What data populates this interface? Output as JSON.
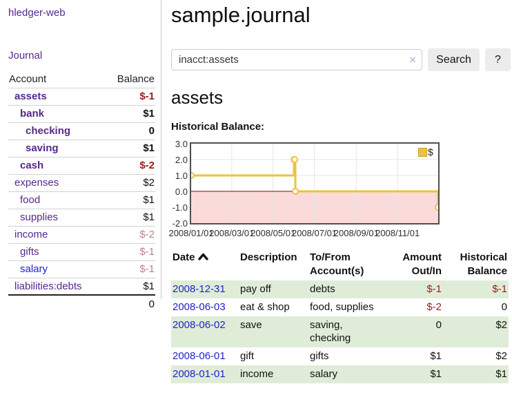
{
  "sidebar": {
    "brand": "hledger-web",
    "journal_link": "Journal",
    "header": {
      "account": "Account",
      "balance": "Balance"
    },
    "accounts": [
      {
        "name": "assets",
        "balance": "$-1"
      },
      {
        "name": "bank",
        "balance": "$1"
      },
      {
        "name": "checking",
        "balance": "0"
      },
      {
        "name": "saving",
        "balance": "$1"
      },
      {
        "name": "cash",
        "balance": "$-2"
      },
      {
        "name": "expenses",
        "balance": "$2"
      },
      {
        "name": "food",
        "balance": "$1"
      },
      {
        "name": "supplies",
        "balance": "$1"
      },
      {
        "name": "income",
        "balance": "$-2"
      },
      {
        "name": "gifts",
        "balance": "$-1"
      },
      {
        "name": "salary",
        "balance": "$-1"
      },
      {
        "name": "liabilities:debts",
        "balance": "$1"
      }
    ],
    "total": "0"
  },
  "header": {
    "title": "sample.journal"
  },
  "search": {
    "value": "inacct:assets",
    "clear_icon": "×",
    "button_label": "Search",
    "help_label": "?"
  },
  "account_page": {
    "title": "assets",
    "chart_title": "Historical Balance:"
  },
  "chart_data": {
    "type": "line",
    "title": "Historical Balance:",
    "step": true,
    "series": [
      {
        "name": "$",
        "color": "#edc240",
        "points": [
          [
            "2008-01-01",
            1
          ],
          [
            "2008-06-01",
            2
          ],
          [
            "2008-06-02",
            2
          ],
          [
            "2008-06-03",
            0
          ],
          [
            "2008-12-31",
            -1
          ]
        ]
      }
    ],
    "xrange": [
      "2008-01-01",
      "2008-12-31"
    ],
    "ylim": [
      -2,
      3
    ],
    "yticks": [
      "3.0",
      "2.0",
      "1.0",
      "0.0",
      "-1.0",
      "-2.0"
    ],
    "xticks": [
      "2008/01/01",
      "2008/03/01",
      "2008/05/01",
      "2008/07/01",
      "2008/09/01",
      "2008/11/01"
    ],
    "legend": [
      "$"
    ],
    "legend_position": "top-right",
    "grid": true,
    "grid_color": "#e6e6e6",
    "zero_line_color": "#8b0000",
    "negative_region_color": "#fbdada",
    "marker": {
      "fill": "#ffffff",
      "radius": 4
    }
  },
  "register": {
    "columns": {
      "date": "Date",
      "description": "Description",
      "accounts": "To/From Account(s)",
      "amount": "Amount Out/In",
      "balance": "Historical Balance"
    },
    "rows": [
      {
        "date": "2008-12-31",
        "description": "pay off",
        "accounts": "debts",
        "amount": "$-1",
        "balance": "$-1"
      },
      {
        "date": "2008-06-03",
        "description": "eat & shop",
        "accounts": "food, supplies",
        "amount": "$-2",
        "balance": "0"
      },
      {
        "date": "2008-06-02",
        "description": "save",
        "accounts": "saving, checking",
        "amount": "0",
        "balance": "$2"
      },
      {
        "date": "2008-06-01",
        "description": "gift",
        "accounts": "gifts",
        "amount": "$1",
        "balance": "$2"
      },
      {
        "date": "2008-01-01",
        "description": "income",
        "accounts": "salary",
        "amount": "$1",
        "balance": "$1"
      }
    ]
  },
  "colors": {
    "link_purple": "#55298a",
    "link_blue": "#2121cc",
    "negative_strong": "#9e1b1b",
    "negative_muted": "#bd8383",
    "row_green": "#dfedd8",
    "chart_line": "#edc240",
    "chart_negative_fill": "#fbdada",
    "chart_zero_line": "#8b0000"
  }
}
